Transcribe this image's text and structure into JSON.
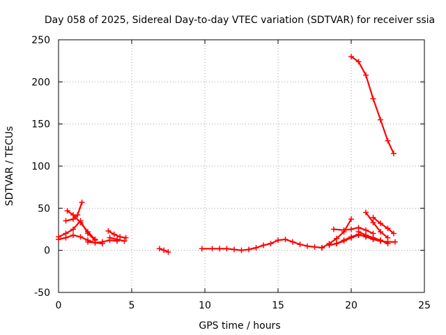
{
  "chart_data": {
    "type": "scatter",
    "title": "Day 058 of 2025, Sidereal Day-to-day VTEC variation (SDTVAR) for receiver ssia",
    "xlabel": "GPS time / hours",
    "ylabel": "SDTVAR / TECUs",
    "xlim": [
      0,
      25
    ],
    "ylim": [
      -50,
      250
    ],
    "xticks": [
      "0",
      "5",
      "10",
      "15",
      "20",
      "25"
    ],
    "yticks": [
      "-50",
      "0",
      "50",
      "100",
      "150",
      "200",
      "250"
    ],
    "grid": true,
    "marker": "+",
    "color": "#ff0000",
    "series": [
      {
        "name": "s1",
        "x": [
          0.0,
          0.5,
          1.0,
          1.5,
          2.0,
          2.5,
          3.0
        ],
        "y": [
          13,
          15,
          18,
          16,
          12,
          9,
          8
        ]
      },
      {
        "name": "s2",
        "x": [
          0.0,
          0.5,
          1.0,
          1.5,
          2.0,
          2.5
        ],
        "y": [
          16,
          20,
          25,
          35,
          20,
          12
        ]
      },
      {
        "name": "s3",
        "x": [
          0.6,
          1.0,
          1.5,
          2.0,
          2.5
        ],
        "y": [
          47,
          42,
          33,
          22,
          13
        ]
      },
      {
        "name": "s4",
        "x": [
          0.5,
          1.0,
          1.3,
          1.6
        ],
        "y": [
          35,
          37,
          42,
          57
        ]
      },
      {
        "name": "s5",
        "x": [
          2.0,
          2.5,
          3.0,
          3.5,
          4.0
        ],
        "y": [
          10,
          9,
          10,
          12,
          11
        ]
      },
      {
        "name": "s6",
        "x": [
          3.4,
          3.8,
          4.2,
          4.6
        ],
        "y": [
          23,
          19,
          16,
          15
        ]
      },
      {
        "name": "s7",
        "x": [
          3.5,
          4.0,
          4.5
        ],
        "y": [
          15,
          13,
          11
        ]
      },
      {
        "name": "s8",
        "x": [
          6.9,
          7.2,
          7.5
        ],
        "y": [
          2,
          0,
          -2
        ]
      },
      {
        "name": "s9",
        "x": [
          9.8,
          10.5,
          11.0,
          11.5,
          12.0,
          12.5,
          13.0,
          13.5,
          14.0,
          14.5,
          15.0,
          15.5,
          16.0,
          16.5,
          17.0,
          17.5,
          18.0
        ],
        "y": [
          2,
          2,
          2,
          2,
          1,
          0,
          1,
          3,
          6,
          8,
          12,
          13,
          10,
          7,
          5,
          4,
          3
        ]
      },
      {
        "name": "s10",
        "x": [
          18.0,
          18.5,
          19.0,
          19.5,
          20.0
        ],
        "y": [
          3,
          8,
          14,
          22,
          37
        ]
      },
      {
        "name": "s11",
        "x": [
          18.5,
          19.0,
          19.5,
          20.0,
          20.5,
          21.0,
          21.5,
          22.0
        ],
        "y": [
          6,
          8,
          11,
          15,
          18,
          17,
          14,
          11
        ]
      },
      {
        "name": "s12",
        "x": [
          18.8,
          19.5,
          20.0,
          20.5,
          21.0,
          21.5
        ],
        "y": [
          25,
          24,
          25,
          27,
          24,
          20
        ]
      },
      {
        "name": "s13",
        "x": [
          19.0,
          19.5,
          20.0,
          20.5,
          21.0,
          21.5,
          22.0,
          22.5,
          23.0
        ],
        "y": [
          8,
          12,
          16,
          19,
          16,
          13,
          11,
          10,
          10
        ]
      },
      {
        "name": "s14",
        "x": [
          20.0,
          20.5,
          21.0,
          21.5,
          22.0,
          22.5,
          22.9
        ],
        "y": [
          230,
          224,
          208,
          180,
          155,
          130,
          115
        ]
      },
      {
        "name": "s15",
        "x": [
          21.0,
          21.5,
          22.0,
          22.5
        ],
        "y": [
          45,
          33,
          22,
          15
        ]
      },
      {
        "name": "s16",
        "x": [
          21.5,
          22.0,
          22.5,
          22.9
        ],
        "y": [
          39,
          32,
          26,
          20
        ]
      },
      {
        "name": "s17",
        "x": [
          20.5,
          21.0,
          21.5,
          22.0,
          22.5
        ],
        "y": [
          22,
          18,
          15,
          12,
          8
        ]
      }
    ]
  }
}
